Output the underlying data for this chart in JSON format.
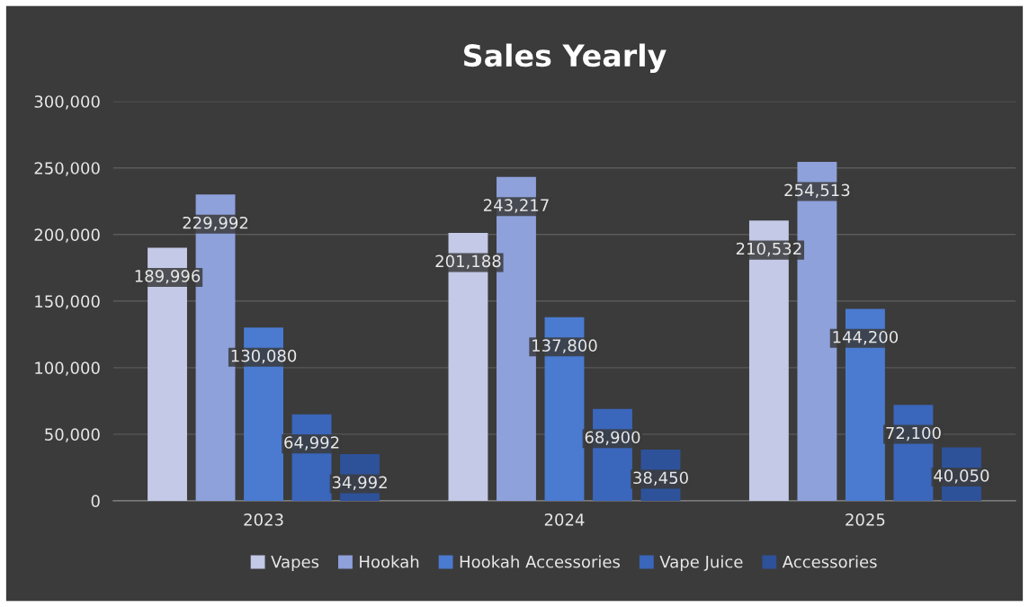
{
  "chart_data": {
    "type": "bar",
    "title": "Sales Yearly",
    "categories": [
      "2023",
      "2024",
      "2025"
    ],
    "series": [
      {
        "name": "Vapes",
        "color": "#c3c9e6",
        "values": [
          189996,
          201188,
          210532
        ],
        "value_labels": [
          "189,996",
          "201,188",
          "210,532"
        ]
      },
      {
        "name": "Hookah",
        "color": "#8ea1da",
        "values": [
          229992,
          243217,
          254513
        ],
        "value_labels": [
          "229,992",
          "243,217",
          "254,513"
        ]
      },
      {
        "name": "Hookah Accessories",
        "color": "#4a7bd0",
        "values": [
          130080,
          137800,
          144200
        ],
        "value_labels": [
          "130,080",
          "137,800",
          "144,200"
        ]
      },
      {
        "name": "Vape Juice",
        "color": "#3a66bb",
        "values": [
          64992,
          68900,
          72100
        ],
        "value_labels": [
          "64,992",
          "68,900",
          "72,100"
        ]
      },
      {
        "name": "Accessories",
        "color": "#2e529a",
        "values": [
          34992,
          38450,
          40050
        ],
        "value_labels": [
          "34,992",
          "38,450",
          "40,050"
        ]
      }
    ],
    "ylim": [
      0,
      300000
    ],
    "yticks": [
      {
        "value": 0,
        "label": "0"
      },
      {
        "value": 50000,
        "label": "50,000"
      },
      {
        "value": 100000,
        "label": "100,000"
      },
      {
        "value": 150000,
        "label": "150,000"
      },
      {
        "value": 200000,
        "label": "200,000"
      },
      {
        "value": 250000,
        "label": "250,000"
      },
      {
        "value": 300000,
        "label": "300,000"
      }
    ],
    "grid": "y",
    "legend": "bottom"
  }
}
